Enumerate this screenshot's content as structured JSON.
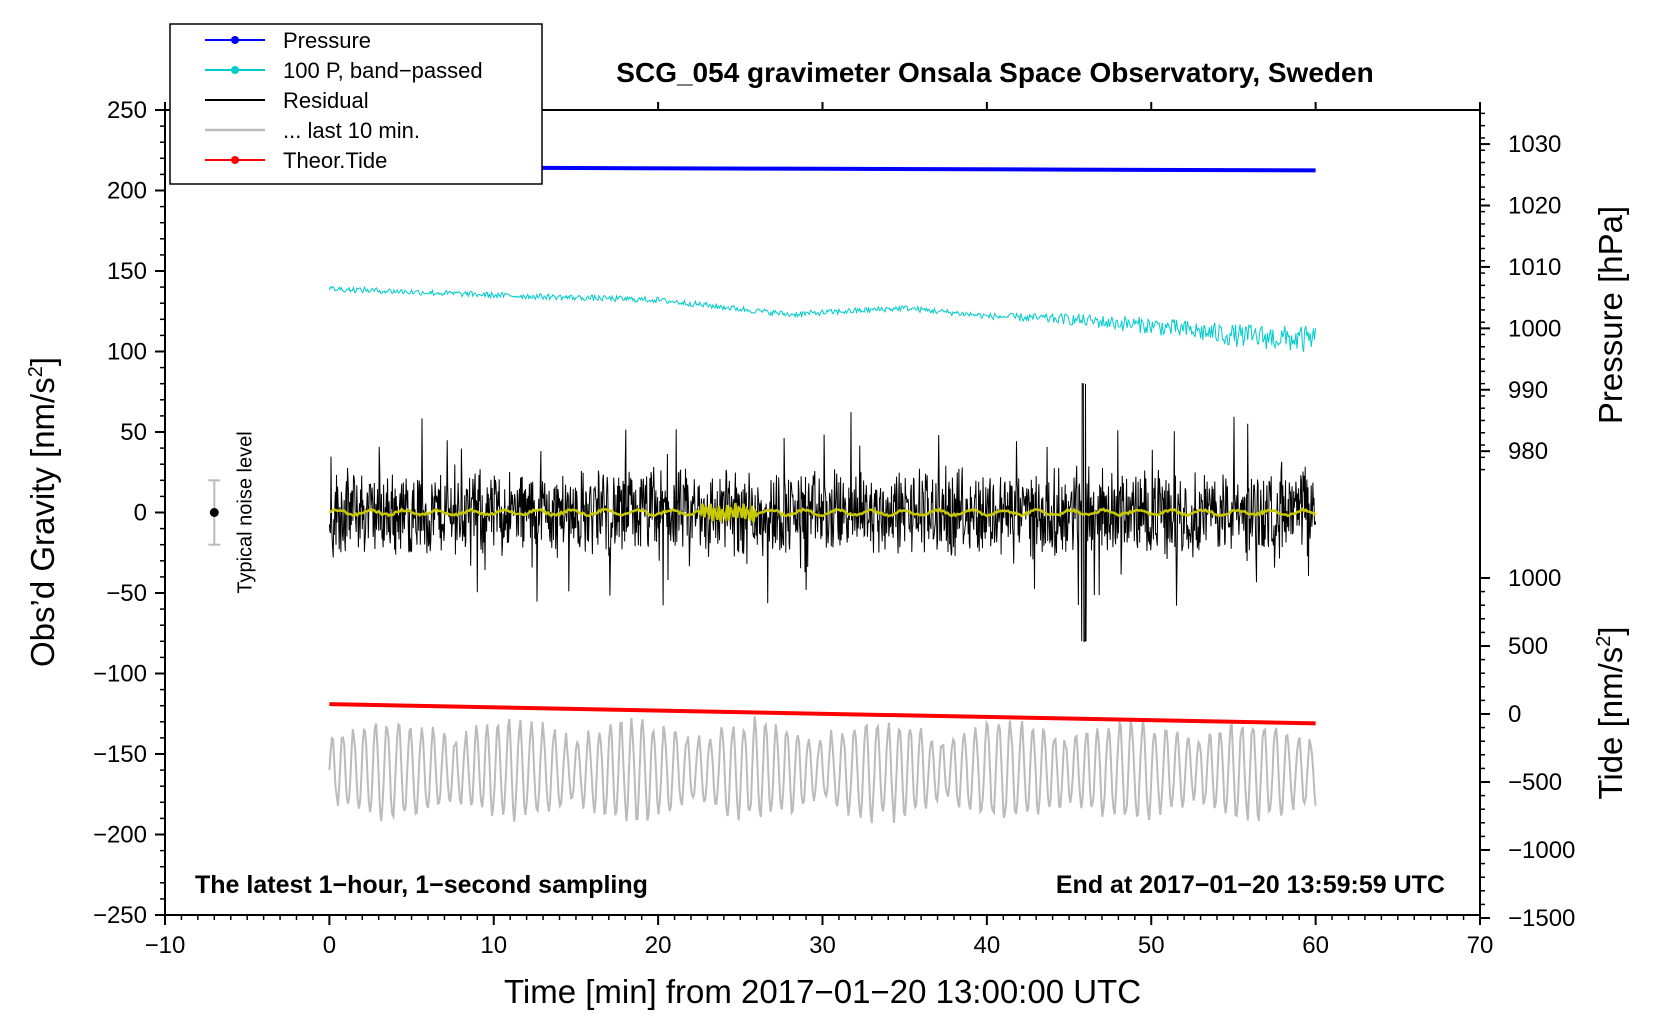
{
  "chart_data": {
    "type": "line",
    "title": "SCG_054 gravimeter Onsala Space Observatory, Sweden",
    "xlabel": "Time [min] from 2017−01−20 13:00:00 UTC",
    "ylabel_left": "Obs’d Gravity [nm/s",
    "ylabel_left_sup": "2",
    "ylabel_left_end": "]",
    "ylabel_right_top": "Pressure [hPa]",
    "ylabel_right_bottom": "Tide [nm/s",
    "ylabel_right_bottom_sup": "2",
    "ylabel_right_bottom_end": "]",
    "xlim": [
      -10,
      70
    ],
    "ylim": [
      -250,
      250
    ],
    "pressure_axis_ticks": [
      980,
      990,
      1000,
      1010,
      1020,
      1030
    ],
    "tide_axis_ticks": [
      -1500,
      -1000,
      -500,
      0,
      500,
      1000
    ],
    "x_ticks": [
      -10,
      0,
      10,
      20,
      30,
      40,
      50,
      60,
      70
    ],
    "y_ticks": [
      -250,
      -200,
      -150,
      -100,
      -50,
      0,
      50,
      100,
      150,
      200,
      250
    ],
    "annotation_left": "The latest 1−hour, 1−second sampling",
    "annotation_right": "End at 2017−01−20 13:59:59 UTC",
    "noise_label": "Typical noise level",
    "noise_bar": {
      "x": -7,
      "center": 0,
      "half_range": 20
    },
    "legend": [
      {
        "label": "Pressure",
        "color": "#0000ff",
        "marker": true
      },
      {
        "label": "100 P, band−passed",
        "color": "#00cccc",
        "marker": true
      },
      {
        "label": "Residual",
        "color": "#000000",
        "marker": false
      },
      {
        "label": "... last 10 min.",
        "color": "#bbbbbb",
        "marker": false
      },
      {
        "label": "Theor.Tide",
        "color": "#ff0000",
        "marker": true
      }
    ],
    "series": [
      {
        "name": "Pressure",
        "color": "#0000ff",
        "x": [
          0,
          15,
          30,
          45,
          60
        ],
        "y": [
          214.5,
          214,
          213.5,
          213,
          212.5
        ]
      },
      {
        "name": "100 P, band-passed",
        "color": "#00cccc",
        "x": [
          0,
          10,
          20,
          28,
          35,
          40,
          45,
          50,
          55,
          60
        ],
        "y": [
          139,
          135,
          132,
          123,
          127,
          122,
          120,
          116,
          110,
          107
        ]
      },
      {
        "name": "Residual",
        "color": "#000000",
        "x": [
          0,
          60
        ],
        "y": [
          0,
          0
        ],
        "amplitude": 25,
        "max_abs": 80
      },
      {
        "name": "Residual (smoothed)",
        "color": "#c8c800",
        "x": [
          0,
          60
        ],
        "y": [
          0,
          0
        ]
      },
      {
        "name": "... last 10 min.",
        "color": "#bbbbbb",
        "x": [
          0,
          60
        ],
        "y": [
          -160,
          -160
        ],
        "amplitude": 25
      },
      {
        "name": "Theor.Tide",
        "color": "#ff0000",
        "x": [
          0,
          60
        ],
        "y": [
          -119,
          -131
        ]
      }
    ]
  }
}
